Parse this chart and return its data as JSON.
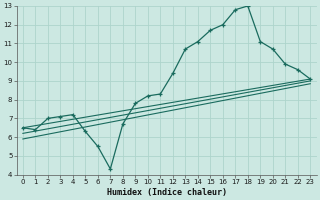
{
  "xlabel": "Humidex (Indice chaleur)",
  "bg_color": "#cce8e2",
  "grid_color": "#aed4cc",
  "line_color": "#1a6b5e",
  "xlim": [
    -0.5,
    23.5
  ],
  "ylim": [
    4,
    13
  ],
  "xticks": [
    0,
    1,
    2,
    3,
    4,
    5,
    6,
    7,
    8,
    9,
    10,
    11,
    12,
    13,
    14,
    15,
    16,
    17,
    18,
    19,
    20,
    21,
    22,
    23
  ],
  "yticks": [
    4,
    5,
    6,
    7,
    8,
    9,
    10,
    11,
    12,
    13
  ],
  "main_x": [
    0,
    1,
    2,
    3,
    4,
    5,
    6,
    7,
    8,
    9,
    10,
    11,
    12,
    13,
    14,
    15,
    16,
    17,
    18,
    19,
    20,
    21,
    22,
    23
  ],
  "main_y": [
    6.5,
    6.4,
    7.0,
    7.1,
    7.2,
    6.3,
    5.5,
    4.3,
    6.7,
    7.8,
    8.2,
    8.3,
    9.4,
    10.7,
    11.1,
    11.7,
    12.0,
    12.8,
    13.0,
    11.1,
    10.7,
    9.9,
    9.6,
    9.1
  ],
  "trend1_x": [
    0,
    23
  ],
  "trend1_y": [
    6.5,
    9.1
  ],
  "trend2_x": [
    0,
    23
  ],
  "trend2_y": [
    6.2,
    9.0
  ],
  "trend3_x": [
    0,
    23
  ],
  "trend3_y": [
    5.9,
    8.85
  ]
}
